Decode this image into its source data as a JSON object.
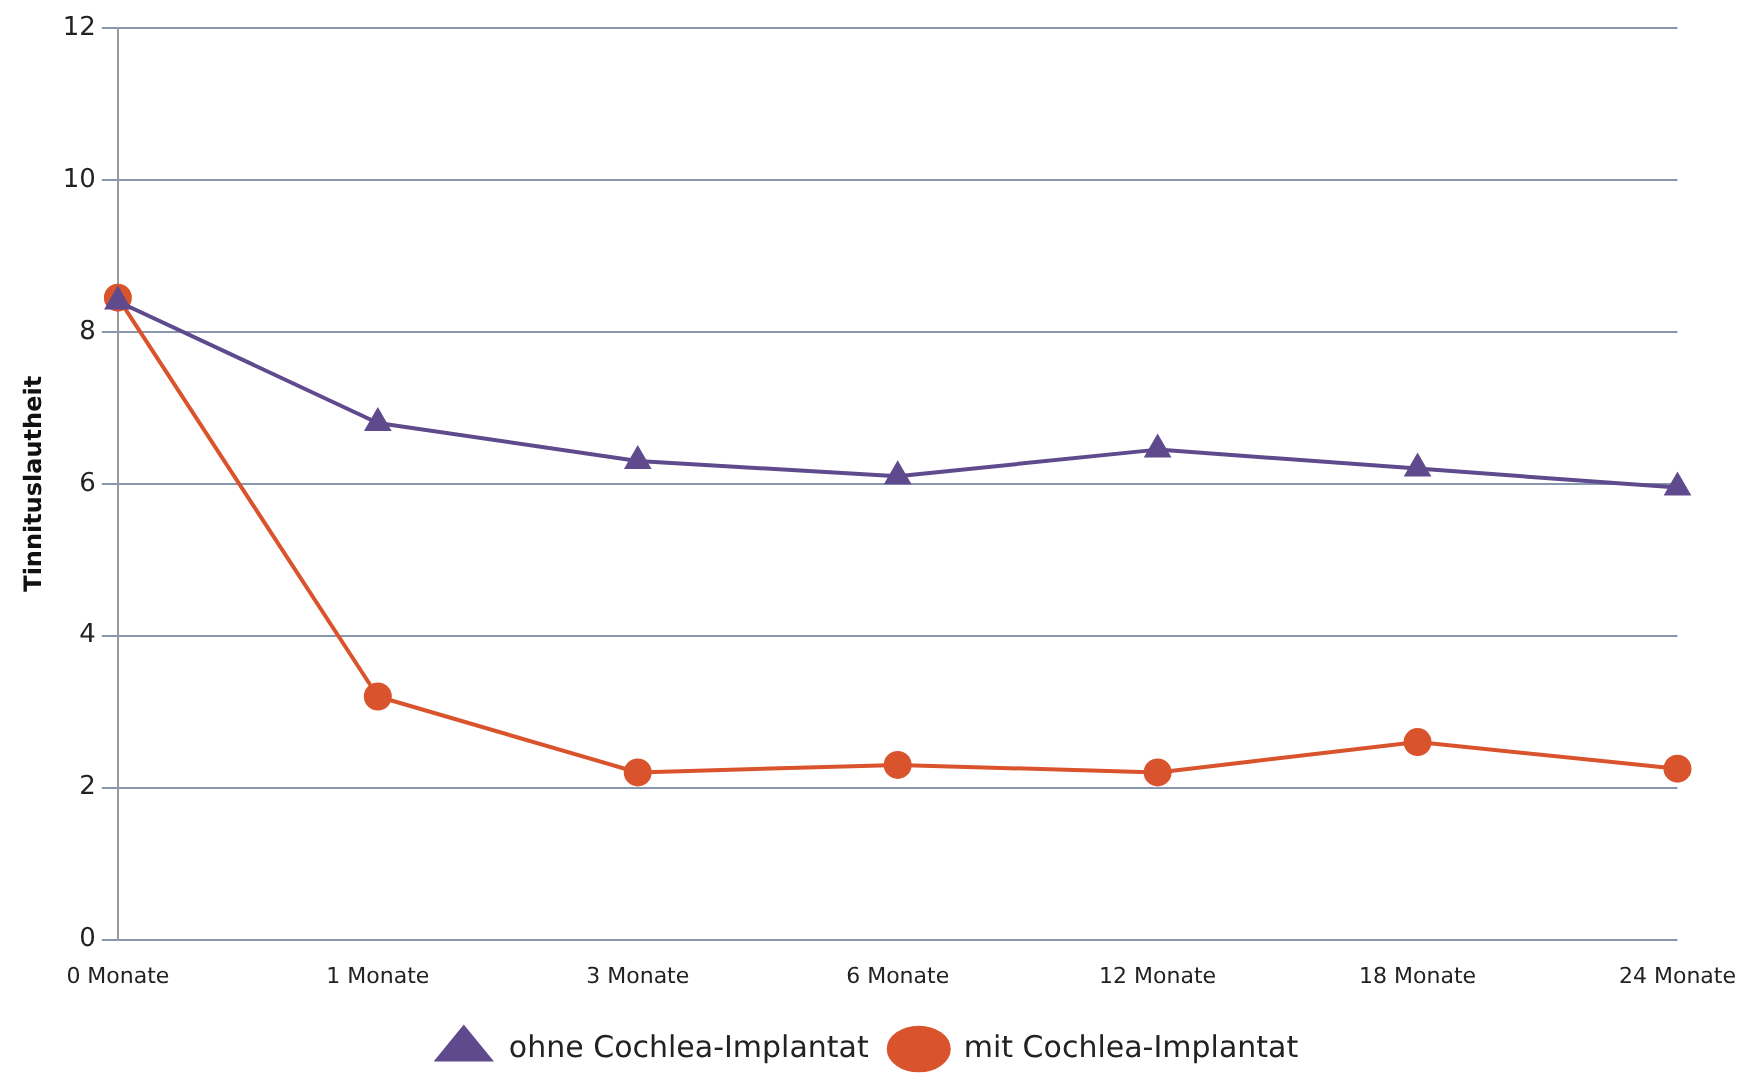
{
  "chart_data": {
    "type": "line",
    "ylabel": "Tinnituslautheit",
    "categories": [
      "0 Monate",
      "1 Monate",
      "3 Monate",
      "6 Monate",
      "12 Monate",
      "18 Monate",
      "24 Monate"
    ],
    "series": [
      {
        "name": "ohne Cochlea-Implantat",
        "color": "#5e4a8c",
        "marker": "triangle",
        "values": [
          8.4,
          6.8,
          6.3,
          6.1,
          6.45,
          6.2,
          5.95
        ]
      },
      {
        "name": "mit Cochlea-Implantat",
        "color": "#d9532c",
        "marker": "circle",
        "values": [
          8.45,
          3.2,
          2.2,
          2.3,
          2.2,
          2.6,
          2.25
        ]
      }
    ],
    "ylim": [
      0,
      12
    ],
    "yticks": [
      0,
      2,
      4,
      6,
      8,
      10,
      12
    ],
    "grid": "y",
    "legend": "bottom"
  }
}
